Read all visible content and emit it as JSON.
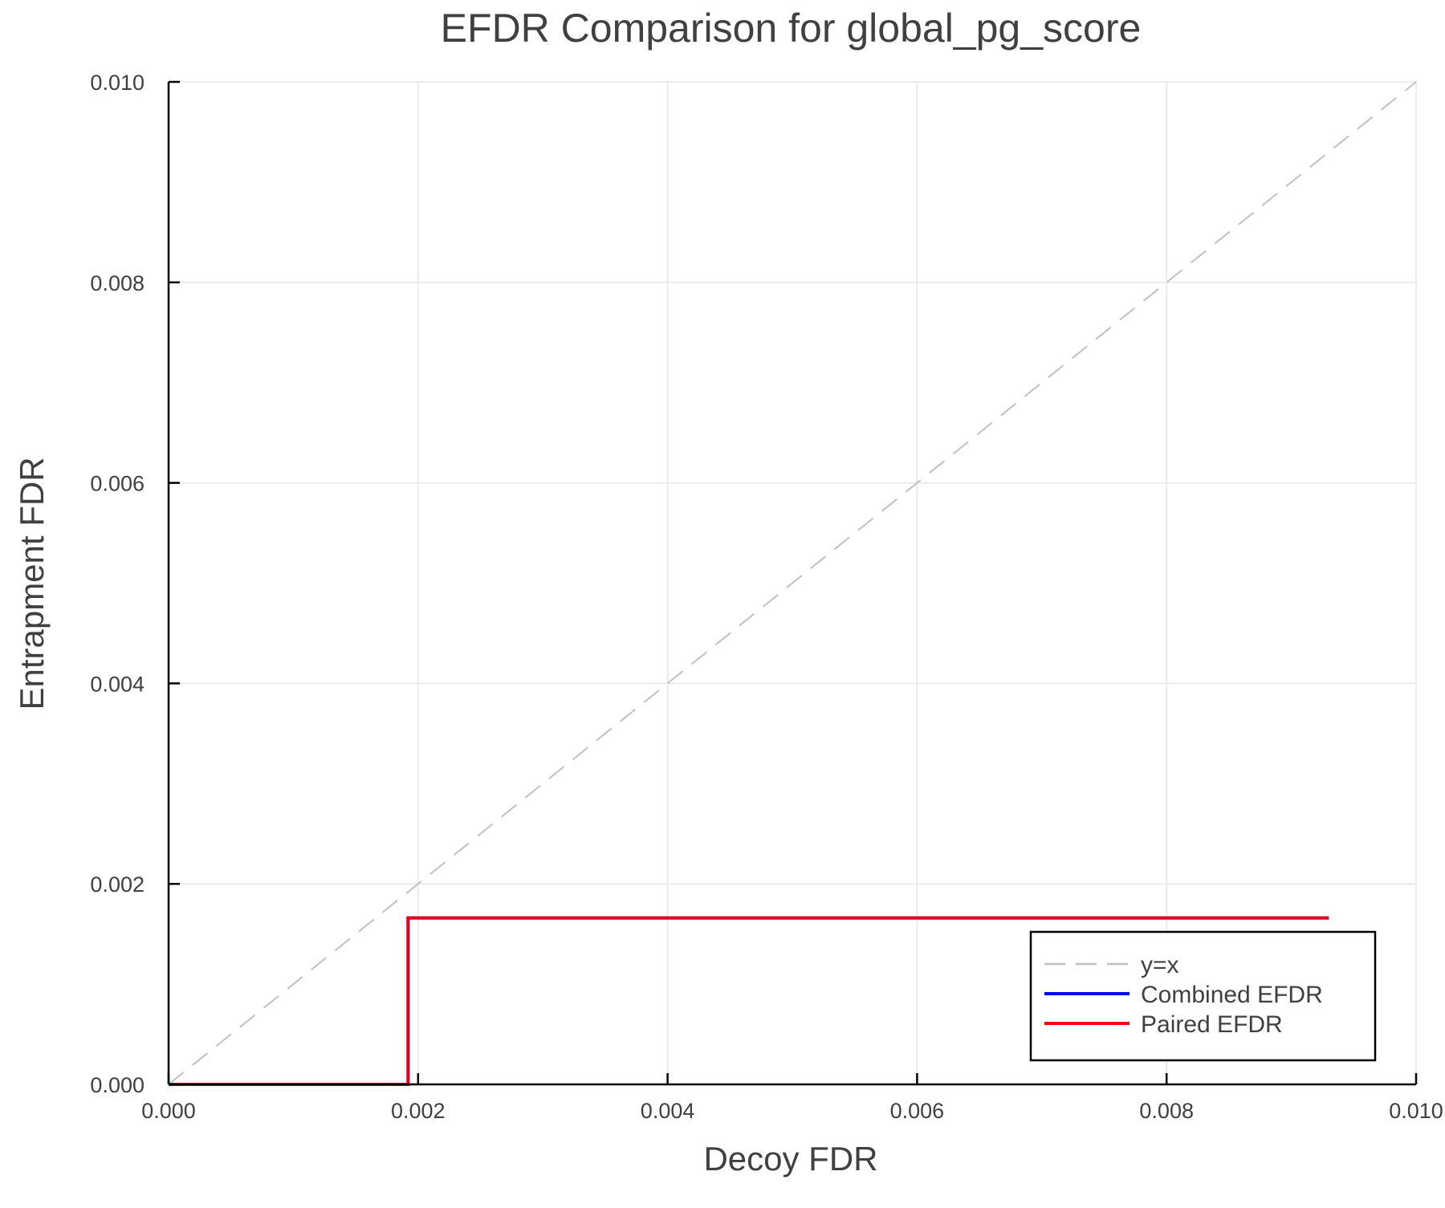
{
  "chart_data": {
    "type": "line",
    "title": "EFDR Comparison for global_pg_score",
    "xlabel": "Decoy FDR",
    "ylabel": "Entrapment FDR",
    "xlim": [
      0,
      0.01
    ],
    "ylim": [
      0,
      0.01
    ],
    "xticks": [
      "0.000",
      "0.002",
      "0.004",
      "0.006",
      "0.008",
      "0.010"
    ],
    "yticks": [
      "0.000",
      "0.002",
      "0.004",
      "0.006",
      "0.008",
      "0.010"
    ],
    "grid": true,
    "legend_position": "bottom-right",
    "series": [
      {
        "name": "y=x",
        "color": "#c0c0c0",
        "style": "dashed",
        "x": [
          0,
          0.01
        ],
        "y": [
          0,
          0.01
        ]
      },
      {
        "name": "Combined EFDR",
        "color": "#0000ff",
        "style": "solid",
        "step": true,
        "x": [
          0,
          0.00192,
          0.00192,
          0.0093
        ],
        "y": [
          0,
          0,
          0.00166,
          0.00166
        ]
      },
      {
        "name": "Paired EFDR",
        "color": "#ff0000",
        "style": "solid",
        "step": true,
        "x": [
          0,
          0.00192,
          0.00192,
          0.0093
        ],
        "y": [
          0,
          0,
          0.00166,
          0.00166
        ]
      }
    ]
  }
}
